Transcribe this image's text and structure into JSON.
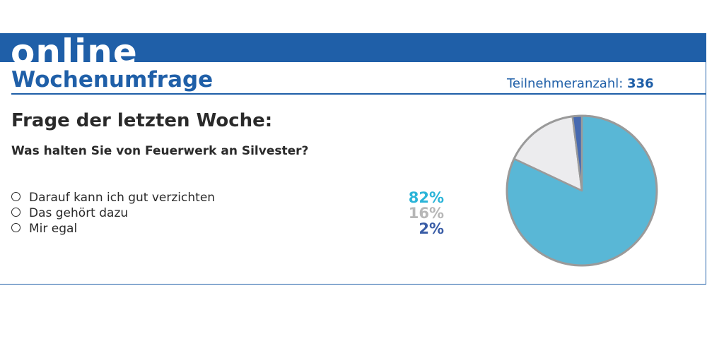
{
  "header": {
    "banner_word": "online",
    "title": "Wochenumfrage",
    "participants_label": "Teilnehmeranzahl:",
    "participants_value": "336"
  },
  "question": {
    "heading": "Frage der letzten Woche:",
    "text": "Was halten Sie von Feuerwerk an Silvester?"
  },
  "answers": [
    {
      "label": "Darauf kann ich gut verzichten",
      "percent_label": "82%",
      "color": "#2bb4d8"
    },
    {
      "label": "Das gehört dazu",
      "percent_label": "16%",
      "color": "#b7b7b7"
    },
    {
      "label": "Mir egal",
      "percent_label": "2%",
      "color": "#3a5da6"
    }
  ],
  "colors": {
    "brand": "#1f5fa8",
    "slice_1": "#59b7d6",
    "slice_2": "#ececee",
    "slice_3": "#4669b0",
    "pie_border": "#9a9a9a"
  },
  "chart_data": {
    "type": "pie",
    "categories": [
      "Darauf kann ich gut verzichten",
      "Das gehört dazu",
      "Mir egal"
    ],
    "values": [
      82,
      16,
      2
    ],
    "title": "",
    "legend": "left"
  }
}
